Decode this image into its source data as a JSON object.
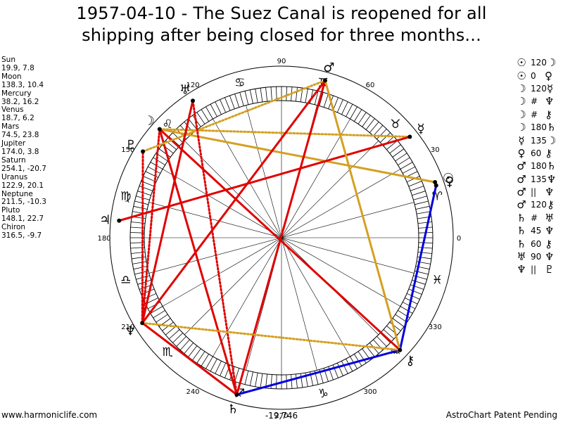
{
  "title": {
    "line1": "1957-04-10 - The Suez Canal is reopened for all",
    "line2": "shipping after being closed for three months..."
  },
  "planet_positions": [
    {
      "name": "Sun",
      "values": "19.9, 7.8"
    },
    {
      "name": "Moon",
      "values": "138.3, 10.4"
    },
    {
      "name": "Mercury",
      "values": "38.2, 16.2"
    },
    {
      "name": "Venus",
      "values": "18.7, 6.2"
    },
    {
      "name": "Mars",
      "values": "74.5, 23.8"
    },
    {
      "name": "Jupiter",
      "values": "174.0, 3.8"
    },
    {
      "name": "Saturn",
      "values": "254.1, -20.7"
    },
    {
      "name": "Uranus",
      "values": "122.9, 20.1"
    },
    {
      "name": "Neptune",
      "values": "211.5, -10.3"
    },
    {
      "name": "Pluto",
      "values": "148.1, 22.7"
    },
    {
      "name": "Chiron",
      "values": "316.5, -9.7"
    }
  ],
  "aspect_list": [
    {
      "p1": "☉",
      "aspect": "120",
      "p2": "☽"
    },
    {
      "p1": "☉",
      "aspect": "0",
      "p2": "♀"
    },
    {
      "p1": "☽",
      "aspect": "120",
      "p2": "☿"
    },
    {
      "p1": "☽",
      "aspect": "#",
      "p2": "♆"
    },
    {
      "p1": "☽",
      "aspect": "#",
      "p2": "⚷"
    },
    {
      "p1": "☽",
      "aspect": "180",
      "p2": "♄"
    },
    {
      "p1": "☿",
      "aspect": "135",
      "p2": "☽"
    },
    {
      "p1": "♀",
      "aspect": "60",
      "p2": "⚷"
    },
    {
      "p1": "♂",
      "aspect": "180",
      "p2": "♄"
    },
    {
      "p1": "♂",
      "aspect": "135",
      "p2": "♆"
    },
    {
      "p1": "♂",
      "aspect": "||",
      "p2": "♆"
    },
    {
      "p1": "♂",
      "aspect": "120",
      "p2": "⚷"
    },
    {
      "p1": "♄",
      "aspect": "#",
      "p2": "♅"
    },
    {
      "p1": "♄",
      "aspect": "45",
      "p2": "♆"
    },
    {
      "p1": "♄",
      "aspect": "60",
      "p2": "⚷"
    },
    {
      "p1": "♅",
      "aspect": "90",
      "p2": "♆"
    },
    {
      "p1": "♆",
      "aspect": "||",
      "p2": "♇"
    }
  ],
  "wheel": {
    "degree_labels": [
      "0",
      "30",
      "60",
      "90",
      "120",
      "150",
      "180",
      "210",
      "240",
      "270",
      "300",
      "330"
    ],
    "center_value": "-19,746",
    "zodiac_glyphs": [
      "♈",
      "♉",
      "♊",
      "♋",
      "♌",
      "♍",
      "♎",
      "♏",
      "♐",
      "♑",
      "♒",
      "♓"
    ],
    "planets": [
      {
        "id": "sun",
        "glyph": "☉",
        "lon": 19.9
      },
      {
        "id": "moon",
        "glyph": "☽",
        "lon": 138.3
      },
      {
        "id": "mercury",
        "glyph": "☿",
        "lon": 38.2
      },
      {
        "id": "venus",
        "glyph": "♀",
        "lon": 18.7
      },
      {
        "id": "mars",
        "glyph": "♂",
        "lon": 74.5
      },
      {
        "id": "jupiter",
        "glyph": "♃",
        "lon": 174.0
      },
      {
        "id": "saturn",
        "glyph": "♄",
        "lon": 254.1
      },
      {
        "id": "uranus",
        "glyph": "♅",
        "lon": 122.9
      },
      {
        "id": "neptune",
        "glyph": "♆",
        "lon": 211.5
      },
      {
        "id": "pluto",
        "glyph": "♇",
        "lon": 148.1
      },
      {
        "id": "chiron",
        "glyph": "⚷",
        "lon": 316.5
      }
    ],
    "aspect_lines": [
      {
        "from": "moon",
        "to": "sun",
        "color": "#d4a020",
        "style": "solid"
      },
      {
        "from": "moon",
        "to": "mercury",
        "color": "#d4a020",
        "style": "dotted"
      },
      {
        "from": "moon",
        "to": "neptune",
        "color": "#e00000",
        "style": "dotted"
      },
      {
        "from": "moon",
        "to": "chiron",
        "color": "#e00000",
        "style": "solid"
      },
      {
        "from": "moon",
        "to": "saturn",
        "color": "#e00000",
        "style": "solid"
      },
      {
        "from": "mercury",
        "to": "jupiter",
        "color": "#e00000",
        "style": "solid"
      },
      {
        "from": "venus",
        "to": "chiron",
        "color": "#0000e0",
        "style": "solid"
      },
      {
        "from": "mars",
        "to": "saturn",
        "color": "#e00000",
        "style": "solid"
      },
      {
        "from": "mars",
        "to": "neptune",
        "color": "#e00000",
        "style": "solid"
      },
      {
        "from": "mars",
        "to": "chiron",
        "color": "#d4a020",
        "style": "solid"
      },
      {
        "from": "mars",
        "to": "pluto",
        "color": "#d4a020",
        "style": "dotted"
      },
      {
        "from": "saturn",
        "to": "uranus",
        "color": "#e00000",
        "style": "dotted"
      },
      {
        "from": "saturn",
        "to": "neptune",
        "color": "#e00000",
        "style": "solid"
      },
      {
        "from": "saturn",
        "to": "chiron",
        "color": "#0000e0",
        "style": "solid"
      },
      {
        "from": "uranus",
        "to": "neptune",
        "color": "#e00000",
        "style": "solid"
      },
      {
        "from": "neptune",
        "to": "chiron",
        "color": "#d4a020",
        "style": "dotted"
      },
      {
        "from": "neptune",
        "to": "pluto",
        "color": "#e00000",
        "style": "dotted"
      }
    ]
  },
  "colors": {
    "trine": "#d4a020",
    "square": "#e00000",
    "blue": "#0000e0"
  },
  "footer": {
    "left": "www.harmoniclife.com",
    "right": "AstroChart Patent Pending"
  }
}
